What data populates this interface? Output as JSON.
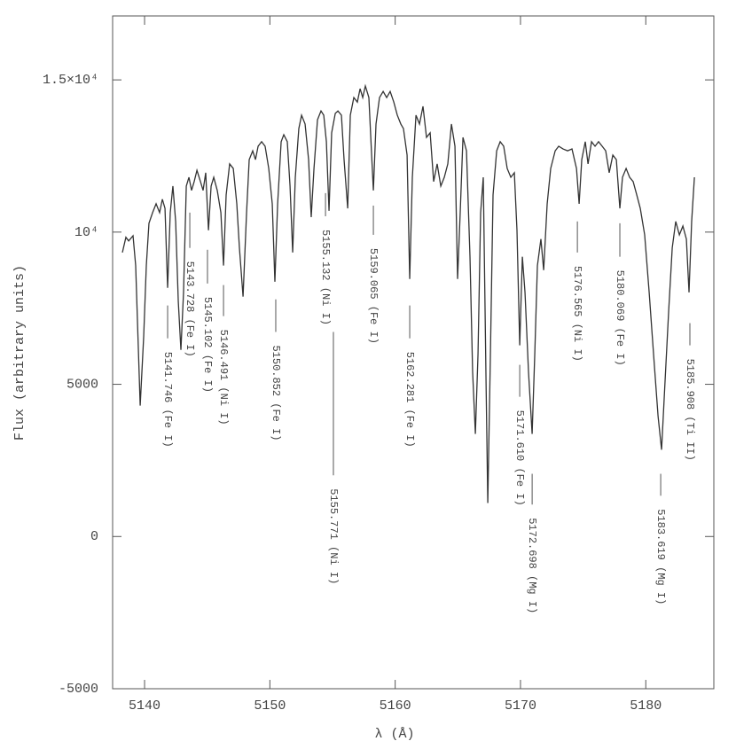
{
  "chart_data": {
    "type": "line",
    "x_label": "λ (Å)",
    "y_label": "Flux (arbitrary units)",
    "xlim": [
      5137.45,
      5185.43
    ],
    "ylim": [
      -5000,
      17100
    ],
    "xticks": [
      5140,
      5150,
      5160,
      5170,
      5180
    ],
    "yticks": [
      -5000,
      0,
      5000,
      {
        "value": 10000,
        "label": "10⁴"
      },
      {
        "value": 15000,
        "label": "1.5×10⁴"
      }
    ],
    "color": "#333333",
    "x": [
      5138.23,
      5138.51,
      5138.73,
      5139.08,
      5139.29,
      5139.65,
      5139.93,
      5140.14,
      5140.35,
      5140.64,
      5140.92,
      5141.2,
      5141.42,
      5141.63,
      5141.84,
      5142.05,
      5142.26,
      5142.48,
      5142.69,
      5142.9,
      5143.11,
      5143.33,
      5143.54,
      5143.75,
      5143.96,
      5144.18,
      5144.46,
      5144.67,
      5144.88,
      5145.1,
      5145.31,
      5145.52,
      5145.8,
      5146.09,
      5146.3,
      5146.51,
      5146.79,
      5147.08,
      5147.36,
      5147.57,
      5147.86,
      5148.14,
      5148.35,
      5148.63,
      5148.85,
      5149.06,
      5149.34,
      5149.62,
      5149.91,
      5150.19,
      5150.4,
      5150.62,
      5150.9,
      5151.11,
      5151.39,
      5151.61,
      5151.82,
      5152.03,
      5152.31,
      5152.53,
      5152.81,
      5153.09,
      5153.3,
      5153.52,
      5153.8,
      5154.08,
      5154.3,
      5154.51,
      5154.72,
      5154.93,
      5155.22,
      5155.43,
      5155.71,
      5155.92,
      5156.21,
      5156.42,
      5156.7,
      5156.98,
      5157.2,
      5157.41,
      5157.62,
      5157.9,
      5158.12,
      5158.26,
      5158.47,
      5158.75,
      5159.04,
      5159.32,
      5159.6,
      5159.89,
      5160.17,
      5160.45,
      5160.66,
      5160.95,
      5161.16,
      5161.37,
      5161.66,
      5161.94,
      5162.22,
      5162.5,
      5162.79,
      5163.07,
      5163.35,
      5163.64,
      5163.92,
      5164.2,
      5164.49,
      5164.77,
      5164.98,
      5165.19,
      5165.41,
      5165.69,
      5165.97,
      5166.18,
      5166.4,
      5166.61,
      5166.82,
      5167.03,
      5167.25,
      5167.39,
      5167.6,
      5167.81,
      5168.1,
      5168.38,
      5168.66,
      5168.94,
      5169.23,
      5169.51,
      5169.72,
      5169.94,
      5170.15,
      5170.36,
      5170.64,
      5170.93,
      5171.14,
      5171.35,
      5171.63,
      5171.85,
      5172.13,
      5172.41,
      5172.77,
      5173.05,
      5173.4,
      5173.76,
      5174.11,
      5174.47,
      5174.68,
      5174.89,
      5175.17,
      5175.39,
      5175.67,
      5175.95,
      5176.23,
      5176.52,
      5176.8,
      5177.08,
      5177.37,
      5177.65,
      5177.93,
      5178.14,
      5178.43,
      5178.71,
      5178.99,
      5179.28,
      5179.56,
      5179.91,
      5180.27,
      5180.62,
      5180.98,
      5181.26,
      5181.54,
      5181.83,
      5182.11,
      5182.39,
      5182.68,
      5182.96,
      5183.24,
      5183.45,
      5183.66,
      5183.88
    ],
    "values": [
      9330,
      9830,
      9710,
      9880,
      8900,
      4300,
      6570,
      8900,
      10290,
      10640,
      10930,
      10640,
      11080,
      10780,
      8170,
      10640,
      11510,
      10350,
      7730,
      6130,
      8020,
      11510,
      11800,
      11370,
      11660,
      12030,
      11660,
      11370,
      11950,
      10060,
      11510,
      11800,
      11370,
      10640,
      8900,
      11220,
      12240,
      12090,
      10930,
      9480,
      7880,
      10640,
      12380,
      12670,
      12380,
      12820,
      12970,
      12820,
      12090,
      10930,
      8370,
      10930,
      12970,
      13200,
      12970,
      11510,
      9330,
      11800,
      13400,
      13840,
      13550,
      12380,
      10490,
      12090,
      13690,
      13980,
      13840,
      12970,
      10700,
      13260,
      13900,
      13980,
      13840,
      12380,
      10780,
      13840,
      14420,
      14270,
      14710,
      14420,
      14800,
      14420,
      12530,
      11370,
      13550,
      14420,
      14620,
      14420,
      14620,
      14270,
      13840,
      13550,
      13400,
      12530,
      8460,
      11800,
      13840,
      13550,
      14130,
      13110,
      13260,
      11660,
      12240,
      11510,
      11800,
      12240,
      13550,
      12820,
      8460,
      10640,
      13110,
      12670,
      9190,
      5410,
      3370,
      5990,
      10640,
      11800,
      5120,
      1100,
      5990,
      11220,
      12670,
      12970,
      12820,
      12090,
      11800,
      11950,
      10060,
      6280,
      9190,
      8020,
      5410,
      3370,
      5990,
      8900,
      9770,
      8750,
      10930,
      12090,
      12670,
      12820,
      12730,
      12670,
      12730,
      12090,
      10930,
      12380,
      12970,
      12240,
      12970,
      12820,
      12970,
      12820,
      12670,
      11950,
      12530,
      12380,
      10780,
      11800,
      12090,
      11800,
      11660,
      11220,
      10780,
      9910,
      8020,
      5990,
      3950,
      2850,
      5120,
      7440,
      9480,
      10350,
      9910,
      10200,
      9770,
      8020,
      10350,
      11800
    ],
    "annotations": [
      {
        "label": "5141.746 (Fe I)",
        "x": 5141.84,
        "y": 7590,
        "y2": 6510
      },
      {
        "label": "5143.728 (Fe I)",
        "x": 5143.61,
        "y": 10640,
        "y2": 9480
      },
      {
        "label": "5145.102 (Fe I)",
        "x": 5145.02,
        "y": 9420,
        "y2": 8310
      },
      {
        "label": "5146.491 (Ni I)",
        "x": 5146.3,
        "y": 8260,
        "y2": 7240
      },
      {
        "label": "5150.852 (Fe I)",
        "x": 5150.47,
        "y": 7790,
        "y2": 6720
      },
      {
        "label": "5155.132 (Ni I)",
        "x": 5154.44,
        "y": 11280,
        "y2": 10520
      },
      {
        "label": "5155.771 (Ni I)",
        "x": 5155.07,
        "y": 6720,
        "y2": 2010
      },
      {
        "label": "5159.065 (Fe I)",
        "x": 5158.26,
        "y": 10870,
        "y2": 9910
      },
      {
        "label": "5162.281 (Fe I)",
        "x": 5161.16,
        "y": 7590,
        "y2": 6510
      },
      {
        "label": "5171.610 (Fe I)",
        "x": 5169.94,
        "y": 5640,
        "y2": 4590
      },
      {
        "label": "5172.698 (Mg I)",
        "x": 5170.93,
        "y": 2060,
        "y2": 1050
      },
      {
        "label": "5176.565 (Ni I)",
        "x": 5174.54,
        "y": 10350,
        "y2": 9330
      },
      {
        "label": "5180.069 (Fe I)",
        "x": 5177.93,
        "y": 10290,
        "y2": 9190
      },
      {
        "label": "5183.619 (Mg I)",
        "x": 5181.19,
        "y": 2060,
        "y2": 1340
      },
      {
        "label": "5185.908 (Ti II)",
        "x": 5183.52,
        "y": 7010,
        "y2": 6280
      }
    ]
  }
}
